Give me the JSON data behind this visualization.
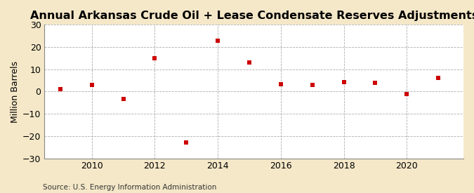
{
  "title": "Annual Arkansas Crude Oil + Lease Condensate Reserves Adjustments",
  "ylabel": "Million Barrels",
  "source": "Source: U.S. Energy Information Administration",
  "years": [
    2009,
    2010,
    2011,
    2012,
    2013,
    2014,
    2015,
    2016,
    2017,
    2018,
    2019,
    2020,
    2021
  ],
  "values": [
    1.2,
    3.0,
    -3.2,
    15.0,
    -23.0,
    23.0,
    13.0,
    3.2,
    3.0,
    4.2,
    4.0,
    -1.2,
    6.2
  ],
  "marker_color": "#CC0000",
  "background_color": "#F5E8C8",
  "plot_bg_color": "#FFFFFF",
  "grid_color": "#999999",
  "ylim": [
    -30,
    30
  ],
  "yticks": [
    -30,
    -20,
    -10,
    0,
    10,
    20,
    30
  ],
  "xlim": [
    2008.5,
    2021.8
  ],
  "xticks": [
    2010,
    2012,
    2014,
    2016,
    2018,
    2020
  ],
  "title_fontsize": 11.5,
  "axis_fontsize": 9,
  "source_fontsize": 7.5
}
